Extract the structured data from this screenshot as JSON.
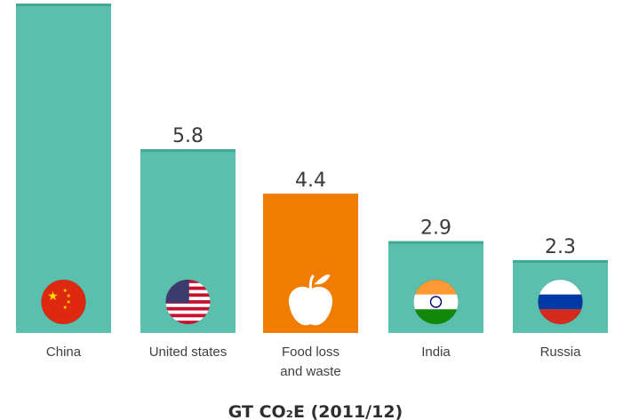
{
  "chart_data": {
    "type": "bar",
    "categories": [
      "China",
      "United states",
      "Food loss\nand waste",
      "India",
      "Russia"
    ],
    "values": [
      10.4,
      5.8,
      4.4,
      2.9,
      2.3
    ],
    "value_labels": [
      "",
      "5.8",
      "4.4",
      "2.9",
      "2.3"
    ],
    "icons": [
      "china-flag-icon",
      "us-flag-icon",
      "apple-icon",
      "india-flag-icon",
      "russia-flag-icon"
    ],
    "xlabel": "GT CO₂E (2011/12)",
    "ylim": [
      0,
      10.4
    ],
    "grid": false,
    "colors": {
      "default": "#5bbfad",
      "highlight": "#f07d00",
      "outline": "#3fa896"
    },
    "highlight_index": 2
  }
}
